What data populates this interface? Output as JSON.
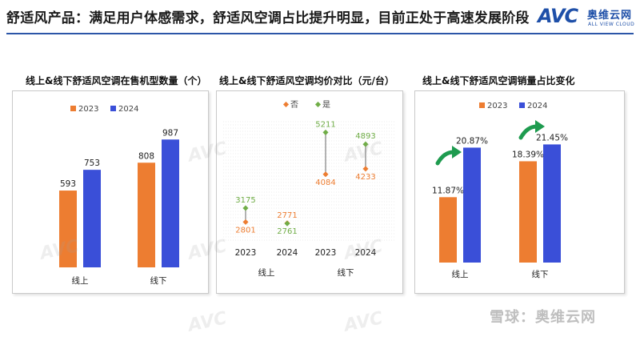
{
  "header": {
    "title": "舒适风产品：满足用户体感需求，舒适风空调占比提升明显，目前正处于高速发展阶段",
    "logo_text": "AVC",
    "logo_cn": "奥维云网",
    "logo_en": "ALL VIEW CLOUD"
  },
  "colors": {
    "y2023": "#ED7D31",
    "y2024": "#3A4FD8",
    "no": "#ED7D31",
    "yes": "#70AD47",
    "connector": "#7F7F7F"
  },
  "watermark": {
    "text": "AVC",
    "cn": "奥维云网",
    "en": "ALL VIEW CLOUD"
  },
  "footer": {
    "source": "雪球：奥维云网"
  },
  "chart_data": [
    {
      "type": "bar",
      "title": "线上&线下舒适风空调在售机型数量（个）",
      "categories": [
        "线上",
        "线下"
      ],
      "series": [
        {
          "name": "2023",
          "values": [
            593,
            808
          ]
        },
        {
          "name": "2024",
          "values": [
            753,
            987
          ]
        }
      ],
      "ylim": [
        0,
        1100
      ],
      "legend": "top-center",
      "grid": false
    },
    {
      "type": "scatter",
      "title": "线上&线下舒适风空调均价对比（元/台）",
      "x": [
        "2023",
        "2024",
        "2023",
        "2024"
      ],
      "groups": [
        "线上",
        "线下"
      ],
      "series": [
        {
          "name": "否",
          "values": [
            2801,
            2771,
            4084,
            4233
          ]
        },
        {
          "name": "是",
          "values": [
            3175,
            2761,
            5211,
            4893
          ]
        }
      ],
      "ylim": [
        2400,
        5500
      ],
      "legend": "top-center",
      "grid": true
    },
    {
      "type": "bar",
      "title": "线上&线下舒适风空调销量占比变化",
      "categories": [
        "线上",
        "线下"
      ],
      "series": [
        {
          "name": "2023",
          "values": [
            11.87,
            18.39
          ],
          "labels": [
            "11.87%",
            "18.39%"
          ]
        },
        {
          "name": "2024",
          "values": [
            20.87,
            21.45
          ],
          "labels": [
            "20.87%",
            "21.45%"
          ]
        }
      ],
      "ylim": [
        0,
        25
      ],
      "legend": "top-center",
      "grid": false
    }
  ]
}
